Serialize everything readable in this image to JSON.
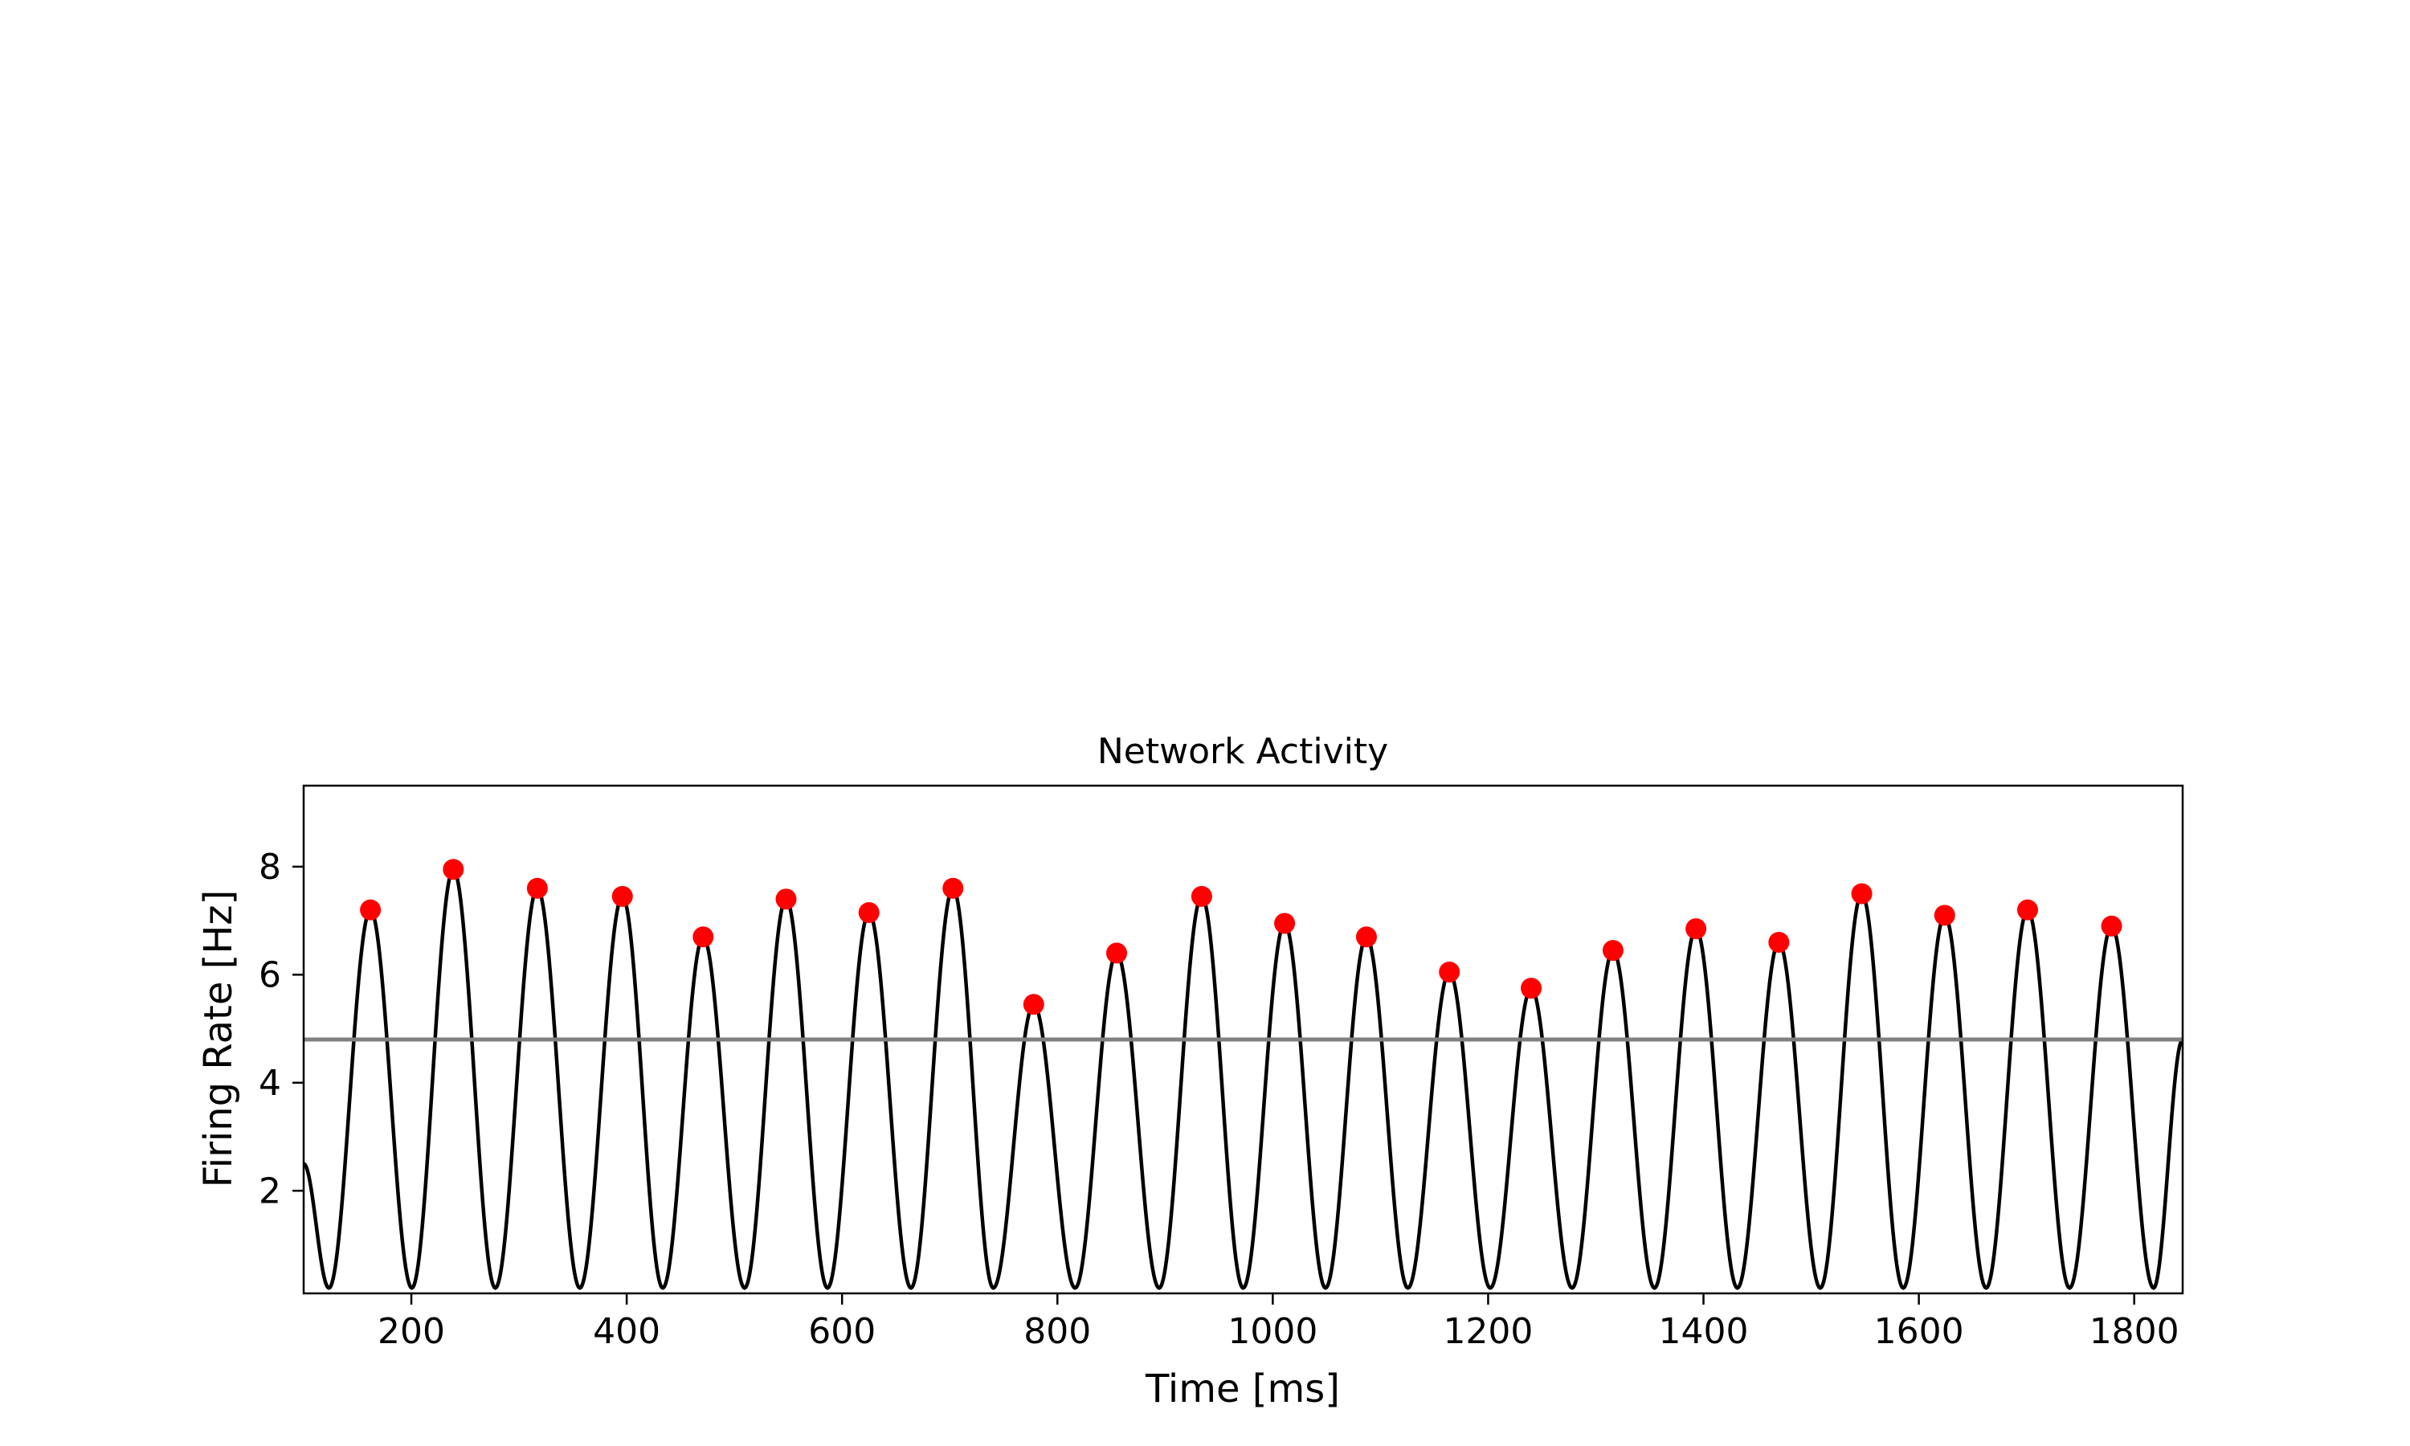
{
  "chart_data": {
    "type": "line",
    "title": "Network Activity",
    "xlabel": "Time [ms]",
    "ylabel": "Firing Rate [Hz]",
    "xlim": [
      100,
      1845
    ],
    "ylim": [
      0.1,
      9.5
    ],
    "xticks": [
      200,
      400,
      600,
      800,
      1000,
      1200,
      1400,
      1600,
      1800
    ],
    "yticks": [
      2,
      4,
      6,
      8
    ],
    "grid": false,
    "legend": "none",
    "threshold": {
      "value": 4.8,
      "color": "#808080"
    },
    "series": [
      {
        "style": "line",
        "color": "#000000",
        "trough_value": 0.2,
        "start_value": 2.5,
        "end_value": 4.8
      },
      {
        "style": "markers",
        "color": "#ff0000",
        "x": [
          162,
          239,
          317,
          396,
          471,
          548,
          625,
          703,
          778,
          855,
          934,
          1011,
          1087,
          1164,
          1240,
          1316,
          1393,
          1470,
          1547,
          1624,
          1701,
          1779
        ],
        "y": [
          7.2,
          7.95,
          7.6,
          7.45,
          6.7,
          7.4,
          7.15,
          7.6,
          5.45,
          6.4,
          7.45,
          6.95,
          6.7,
          6.05,
          5.75,
          6.45,
          6.85,
          6.6,
          7.5,
          7.1,
          7.2,
          6.9
        ]
      }
    ]
  }
}
